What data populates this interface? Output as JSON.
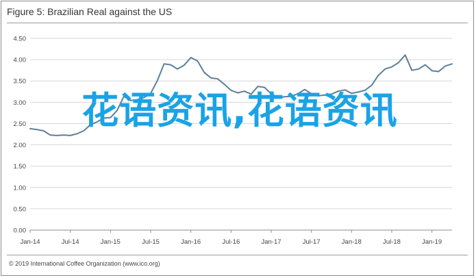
{
  "figure": {
    "title": "Figure 5: Brazilian Real against the US",
    "copyright": "© 2019 International Coffee Organization (www.ico.org)"
  },
  "watermark": {
    "text": "花语资讯,花语资讯"
  },
  "chart_data": {
    "type": "line",
    "title": "Figure 5: Brazilian Real against the US",
    "xlabel": "",
    "ylabel": "",
    "ylim": [
      0,
      4.5
    ],
    "y_ticks": [
      "0.00",
      "0.50",
      "1.00",
      "1.50",
      "2.00",
      "2.50",
      "3.00",
      "3.50",
      "4.00",
      "4.50"
    ],
    "x_ticks": [
      "Jan-14",
      "Jul-14",
      "Jan-15",
      "Jul-15",
      "Jan-16",
      "Jul-16",
      "Jan-17",
      "Jul-17",
      "Jan-18",
      "Jul-18",
      "Jan-19"
    ],
    "grid": "horizontal",
    "line_color": "#5b7f99",
    "series": [
      {
        "name": "",
        "x": [
          "2014-01",
          "2014-02",
          "2014-03",
          "2014-04",
          "2014-05",
          "2014-06",
          "2014-07",
          "2014-08",
          "2014-09",
          "2014-10",
          "2014-11",
          "2014-12",
          "2015-01",
          "2015-02",
          "2015-03",
          "2015-04",
          "2015-05",
          "2015-06",
          "2015-07",
          "2015-08",
          "2015-09",
          "2015-10",
          "2015-11",
          "2015-12",
          "2016-01",
          "2016-02",
          "2016-03",
          "2016-04",
          "2016-05",
          "2016-06",
          "2016-07",
          "2016-08",
          "2016-09",
          "2016-10",
          "2016-11",
          "2016-12",
          "2017-01",
          "2017-02",
          "2017-03",
          "2017-04",
          "2017-05",
          "2017-06",
          "2017-07",
          "2017-08",
          "2017-09",
          "2017-10",
          "2017-11",
          "2017-12",
          "2018-01",
          "2018-02",
          "2018-03",
          "2018-04",
          "2018-05",
          "2018-06",
          "2018-07",
          "2018-08",
          "2018-09",
          "2018-10",
          "2018-11",
          "2018-12",
          "2019-01",
          "2019-02",
          "2019-03",
          "2019-04"
        ],
        "values": [
          2.38,
          2.36,
          2.33,
          2.23,
          2.22,
          2.23,
          2.22,
          2.26,
          2.33,
          2.47,
          2.54,
          2.63,
          2.64,
          2.81,
          3.14,
          3.04,
          3.06,
          3.11,
          3.21,
          3.51,
          3.9,
          3.88,
          3.78,
          3.87,
          4.05,
          3.97,
          3.7,
          3.57,
          3.55,
          3.42,
          3.28,
          3.22,
          3.26,
          3.19,
          3.37,
          3.35,
          3.2,
          3.11,
          3.13,
          3.14,
          3.2,
          3.3,
          3.2,
          3.15,
          3.17,
          3.19,
          3.26,
          3.29,
          3.21,
          3.24,
          3.28,
          3.4,
          3.63,
          3.78,
          3.83,
          3.93,
          4.11,
          3.75,
          3.78,
          3.88,
          3.74,
          3.72,
          3.85,
          3.9
        ]
      }
    ]
  }
}
